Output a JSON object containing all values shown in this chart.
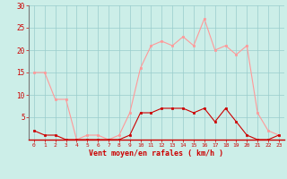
{
  "hours": [
    0,
    1,
    2,
    3,
    4,
    5,
    6,
    7,
    8,
    9,
    10,
    11,
    12,
    13,
    14,
    15,
    16,
    17,
    18,
    19,
    20,
    21,
    22,
    23
  ],
  "wind_avg": [
    2,
    1,
    1,
    0,
    0,
    0,
    0,
    0,
    0,
    1,
    6,
    6,
    7,
    7,
    7,
    6,
    7,
    4,
    7,
    4,
    1,
    0,
    0,
    1
  ],
  "wind_gust": [
    15,
    15,
    9,
    9,
    0,
    1,
    1,
    0,
    1,
    6,
    16,
    21,
    22,
    21,
    23,
    21,
    27,
    20,
    21,
    19,
    21,
    6,
    2,
    1
  ],
  "color_avg": "#cc0000",
  "color_gust": "#ff9999",
  "bg_color": "#cceee8",
  "grid_color": "#99cccc",
  "xlabel": "Vent moyen/en rafales ( km/h )",
  "xlabel_color": "#cc0000",
  "tick_color": "#cc0000",
  "ylim": [
    0,
    30
  ],
  "yticks": [
    5,
    10,
    15,
    20,
    25,
    30
  ],
  "xlim": [
    -0.5,
    23.5
  ]
}
